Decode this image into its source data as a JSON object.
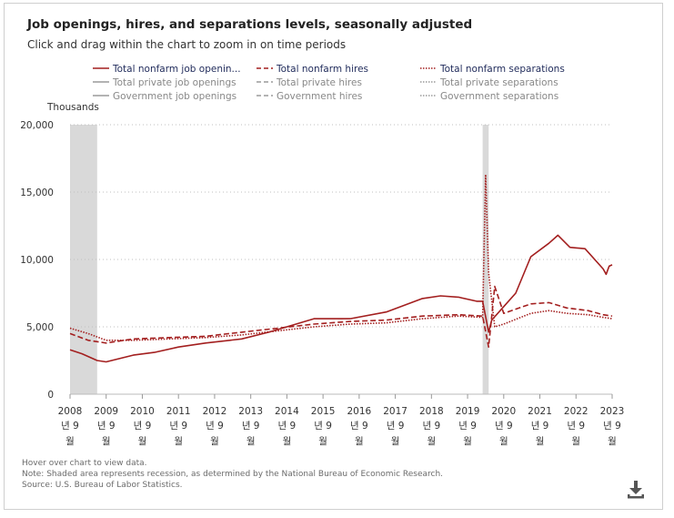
{
  "title": "Job openings, hires, and separations levels, seasonally adjusted",
  "subtitle": "Click and drag within the chart to zoom in on time periods",
  "footnotes": {
    "hover": "Hover over chart to view data.",
    "note": "Note: Shaded area represents recession, as determined by the National Bureau of Economic Research.",
    "source": "Source: U.S. Bureau of Labor Statistics."
  },
  "colors": {
    "nonfarm": "#a31f1f",
    "private": "#9a9a9a",
    "government": "#9a9a9a",
    "recession": "#d9d9d9"
  },
  "download_icon": "download-icon",
  "chart_data": {
    "type": "line",
    "ylabel": "Thousands",
    "ylim": [
      0,
      20000
    ],
    "yticks": [
      "0",
      "5,000",
      "10,000",
      "15,000",
      "20,000"
    ],
    "xlim": [
      "2008-09",
      "2023-09"
    ],
    "xtick_labels": [
      {
        "year": "2008",
        "mo": "년 9",
        "wol": "월"
      },
      {
        "year": "2009",
        "mo": "년 9",
        "wol": "월"
      },
      {
        "year": "2010",
        "mo": "년 9",
        "wol": "월"
      },
      {
        "year": "2011",
        "mo": "년 9",
        "wol": "월"
      },
      {
        "year": "2012",
        "mo": "년 9",
        "wol": "월"
      },
      {
        "year": "2013",
        "mo": "년 9",
        "wol": "월"
      },
      {
        "year": "2014",
        "mo": "년 9",
        "wol": "월"
      },
      {
        "year": "2015",
        "mo": "년 9",
        "wol": "월"
      },
      {
        "year": "2016",
        "mo": "년 9",
        "wol": "월"
      },
      {
        "year": "2017",
        "mo": "년 9",
        "wol": "월"
      },
      {
        "year": "2018",
        "mo": "년 9",
        "wol": "월"
      },
      {
        "year": "2019",
        "mo": "년 9",
        "wol": "월"
      },
      {
        "year": "2020",
        "mo": "년 9",
        "wol": "월"
      },
      {
        "year": "2021",
        "mo": "년 9",
        "wol": "월"
      },
      {
        "year": "2022",
        "mo": "년 9",
        "wol": "월"
      },
      {
        "year": "2023",
        "mo": "년 9",
        "wol": "월"
      }
    ],
    "grid": "horizontal dotted",
    "legend_position": "top",
    "recessions": [
      [
        "2008-09",
        "2009-06"
      ],
      [
        "2020-02",
        "2020-04"
      ]
    ],
    "series": [
      {
        "name": "Total nonfarm job openin...",
        "color": "#a31f1f",
        "dash": "solid",
        "x": [
          "2008-09",
          "2009-01",
          "2009-06",
          "2009-09",
          "2010-06",
          "2011-01",
          "2011-09",
          "2012-06",
          "2013-06",
          "2014-03",
          "2014-09",
          "2015-06",
          "2016-06",
          "2017-06",
          "2018-06",
          "2018-12",
          "2019-06",
          "2019-12",
          "2020-02",
          "2020-04",
          "2020-05",
          "2020-09",
          "2021-01",
          "2021-06",
          "2021-12",
          "2022-03",
          "2022-07",
          "2022-12",
          "2023-06",
          "2023-07",
          "2023-08",
          "2023-09"
        ],
        "values": [
          3300,
          3000,
          2500,
          2400,
          2900,
          3100,
          3500,
          3800,
          4100,
          4600,
          5000,
          5600,
          5600,
          6100,
          7100,
          7300,
          7200,
          6900,
          6900,
          4600,
          5500,
          6500,
          7500,
          10200,
          11200,
          11800,
          10900,
          10800,
          9300,
          8900,
          9500,
          9600
        ]
      },
      {
        "name": "Total nonfarm hires",
        "color": "#a31f1f",
        "dash": "dashed",
        "x": [
          "2008-09",
          "2009-03",
          "2009-09",
          "2010-06",
          "2011-06",
          "2012-06",
          "2013-06",
          "2014-06",
          "2015-06",
          "2016-06",
          "2017-06",
          "2018-06",
          "2019-06",
          "2020-02",
          "2020-04",
          "2020-06",
          "2020-09",
          "2021-06",
          "2021-12",
          "2022-06",
          "2023-01",
          "2023-06",
          "2023-09"
        ],
        "values": [
          4500,
          4000,
          3800,
          4100,
          4200,
          4300,
          4600,
          4900,
          5200,
          5400,
          5500,
          5800,
          5900,
          5800,
          3500,
          8000,
          6000,
          6700,
          6800,
          6400,
          6200,
          5900,
          5800
        ]
      },
      {
        "name": "Total nonfarm separations",
        "color": "#a31f1f",
        "dash": "dotted",
        "x": [
          "2008-09",
          "2009-03",
          "2009-09",
          "2010-06",
          "2011-06",
          "2012-06",
          "2013-06",
          "2014-06",
          "2015-06",
          "2016-06",
          "2017-06",
          "2018-06",
          "2019-06",
          "2020-02",
          "2020-03",
          "2020-04",
          "2020-06",
          "2020-09",
          "2021-06",
          "2021-12",
          "2022-06",
          "2023-01",
          "2023-06",
          "2023-09"
        ],
        "values": [
          4900,
          4500,
          4000,
          4000,
          4100,
          4200,
          4400,
          4700,
          5000,
          5200,
          5300,
          5600,
          5800,
          5700,
          16300,
          9000,
          5000,
          5200,
          6000,
          6200,
          6000,
          5900,
          5700,
          5600
        ]
      },
      {
        "name": "Total private job openings",
        "color": "#9a9a9a",
        "dash": "solid",
        "x": [],
        "values": []
      },
      {
        "name": "Total private hires",
        "color": "#9a9a9a",
        "dash": "dashed",
        "x": [],
        "values": []
      },
      {
        "name": "Total private separations",
        "color": "#9a9a9a",
        "dash": "dotted",
        "x": [],
        "values": []
      },
      {
        "name": "Government job openings",
        "color": "#9a9a9a",
        "dash": "solid",
        "x": [],
        "values": []
      },
      {
        "name": "Government hires",
        "color": "#9a9a9a",
        "dash": "dashed",
        "x": [],
        "values": []
      },
      {
        "name": "Government separations",
        "color": "#9a9a9a",
        "dash": "dotted",
        "x": [],
        "values": []
      }
    ]
  }
}
